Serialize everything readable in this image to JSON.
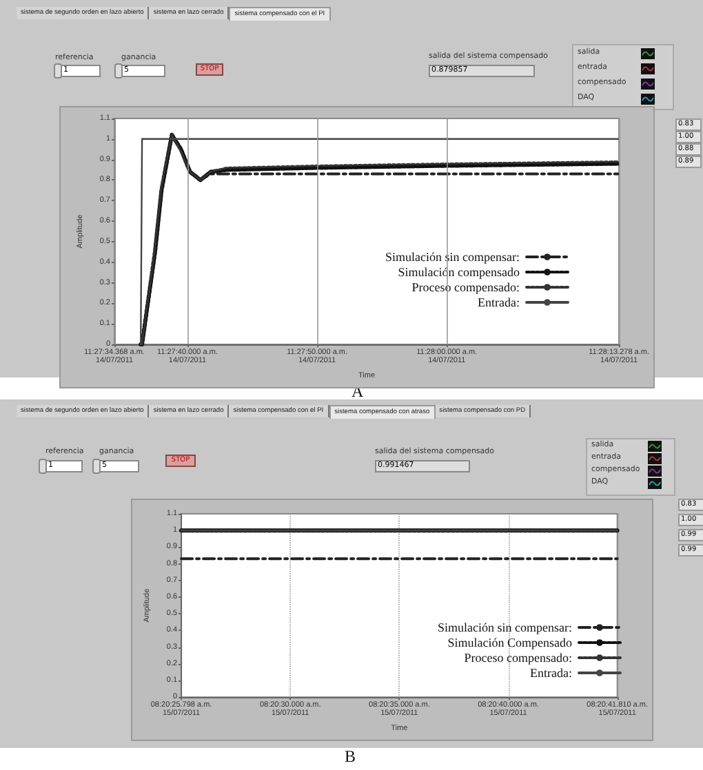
{
  "chart_data": [
    {
      "type": "line",
      "xlabel": "Time",
      "ylabel": "Amplitude",
      "annotations": [
        "sistema de segundo orden en lazo abierto",
        "sistema en lazo cerrado",
        "sistema compensado con el PI",
        "referencia",
        "1",
        "ganancia",
        "5",
        "STOP",
        "salida del sistema compensado",
        "0.879857",
        "salida",
        "entrada",
        "compensado",
        "DAQ",
        "0.83",
        "1.00",
        "0.88",
        "0.89",
        "A"
      ],
      "x": [
        "2011-07-14T11:27:36.400",
        "2011-07-14T11:27:36.500",
        "2011-07-14T11:27:37.500",
        "2011-07-14T11:27:38.000",
        "2011-07-14T11:27:38.800",
        "2011-07-14T11:27:39.500",
        "2011-07-14T11:27:40.200",
        "2011-07-14T11:27:41.000",
        "2011-07-14T11:27:41.800",
        "2011-07-14T11:27:43.000",
        "2011-07-14T11:27:50.000",
        "2011-07-14T11:28:00.000",
        "2011-07-14T11:28:13.200"
      ],
      "series": [
        {
          "name": "Simulación sin compensar:",
          "color": "#222222",
          "line_style": "dashed",
          "values": [
            0,
            0,
            0.45,
            0.75,
            1.02,
            0.95,
            0.84,
            0.8,
            0.83,
            0.83,
            0.83,
            0.83,
            0.83
          ]
        },
        {
          "name": "Simulación compensado",
          "color": "#111111",
          "line_style": "dotted",
          "values": [
            0,
            0,
            0.45,
            0.75,
            1.02,
            0.95,
            0.84,
            0.8,
            0.84,
            0.85,
            0.86,
            0.87,
            0.88
          ]
        },
        {
          "name": "Proceso compensado:",
          "color": "#333333",
          "line_style": "dotted",
          "values": [
            0,
            0,
            0.47,
            0.77,
            1.02,
            0.94,
            0.84,
            0.8,
            0.84,
            0.86,
            0.87,
            0.88,
            0.89
          ]
        },
        {
          "name": "Entrada:",
          "color": "#444444",
          "line_style": "solid",
          "values": [
            0,
            1,
            1,
            1,
            1,
            1,
            1,
            1,
            1,
            1,
            1,
            1,
            1
          ]
        }
      ],
      "xlim": [
        "2011-07-14T11:27:34.368",
        "2011-07-14T11:28:13.278"
      ],
      "xticks": [
        {
          "value": "2011-07-14T11:27:34.368",
          "label": "11:27:34.368 a.m.\n14/07/2011"
        },
        {
          "value": "2011-07-14T11:27:40.000",
          "label": "11:27:40.000 a.m.\n14/07/2011"
        },
        {
          "value": "2011-07-14T11:27:50.000",
          "label": "11:27:50.000 a.m.\n14/07/2011"
        },
        {
          "value": "2011-07-14T11:28:00.000",
          "label": "11:28:00.000 a.m.\n14/07/2011"
        },
        {
          "value": "2011-07-14T11:28:13.278",
          "label": "11:28:13.278 a.m.\n14/07/2011"
        }
      ],
      "ylim": [
        0,
        1.1
      ],
      "yticks": [
        0,
        0.1,
        0.2,
        0.3,
        0.4,
        0.5,
        0.6,
        0.7,
        0.8,
        0.9,
        1,
        1.1
      ],
      "grid": "x",
      "legend": "bottom right"
    },
    {
      "type": "line",
      "xlabel": "Time",
      "ylabel": "Amplitude",
      "annotations": [
        "sistema de segundo orden en lazo abierto",
        "sistema en lazo cerrado",
        "sistema compensado con el PI",
        "sistema compensado con atraso",
        "sistema compensado con PD",
        "referencia",
        "1",
        "ganancia",
        "5",
        "STOP",
        "salida del sistema compensado",
        "0.991467",
        "salida",
        "entrada",
        "compensado",
        "DAQ",
        "0.83",
        "1.00",
        "0.99",
        "0.99",
        "B"
      ],
      "categories": [
        "08:20:25.798 a.m.\n15/07/2011",
        "08:20:30.000 a.m.\n15/07/2011",
        "08:20:35.000 a.m.\n15/07/2011",
        "08:20:40.000 a.m.\n15/07/2011",
        "08:20:41.810 a.m.\n15/07/2011"
      ],
      "series": [
        {
          "name": "Simulación sin compensar:",
          "color": "#222222",
          "line_style": "dashed",
          "values": [
            0.83,
            0.83,
            0.83,
            0.83,
            0.83
          ]
        },
        {
          "name": "Simulación Compensado",
          "color": "#111111",
          "line_style": "dotted",
          "values": [
            1,
            1,
            1,
            1,
            1
          ]
        },
        {
          "name": "Proceso compensado:",
          "color": "#333333",
          "line_style": "dotted",
          "values": [
            1,
            1,
            1,
            1,
            1
          ]
        },
        {
          "name": "Entrada:",
          "color": "#444444",
          "line_style": "solid",
          "values": [
            1,
            1,
            1,
            1,
            1
          ]
        }
      ],
      "ylim": [
        0,
        1.1
      ],
      "yticks": [
        0,
        0.1,
        0.2,
        0.3,
        0.4,
        0.5,
        0.6,
        0.7,
        0.8,
        0.9,
        1,
        1.1
      ],
      "grid": "x",
      "legend": "bottom right"
    }
  ]
}
